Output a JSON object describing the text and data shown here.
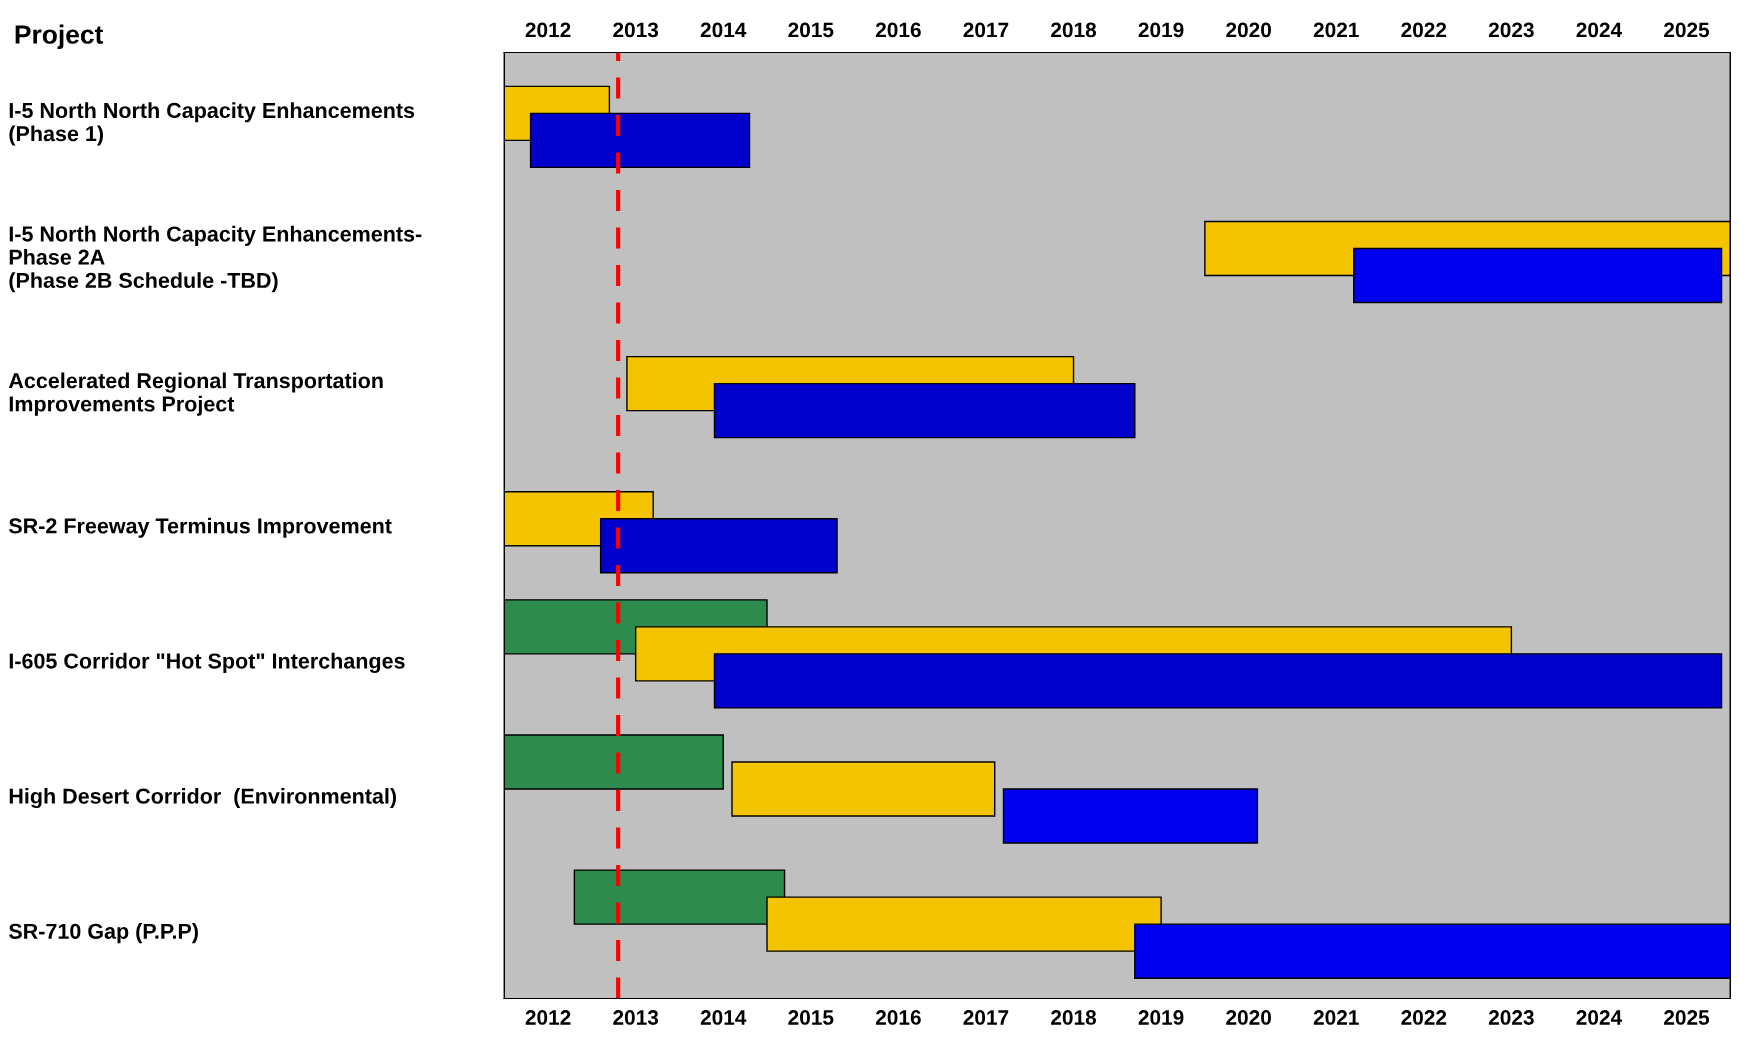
{
  "chart_data": {
    "type": "bar",
    "orientation": "horizontal",
    "ylabel": "Project",
    "categories": [
      "I-5 North North Capacity Enhancements\n(Phase 1)",
      "I-5 North North Capacity Enhancements-\nPhase 2A\n(Phase 2B Schedule -TBD)",
      "Accelerated Regional Transportation\nImprovements Project",
      "SR-2 Freeway Terminus Improvement",
      "I-605 Corridor \"Hot Spot\" Interchanges",
      "High Desert Corridor  (Environmental)",
      "SR-710 Gap (P.P.P)"
    ],
    "series": [
      {
        "color": "#2e8b4e",
        "values": [
          null,
          null,
          null,
          null,
          3.0,
          2.5,
          2.4
        ],
        "base": [
          null,
          null,
          null,
          null,
          2012,
          2012,
          2012.8
        ]
      },
      {
        "color": "#f5c400",
        "values": [
          1.2,
          null,
          5.1,
          1.7,
          10.0,
          null,
          4.5
        ],
        "base": [
          2012,
          null,
          2013.4,
          2012,
          2013.5,
          null,
          2015
        ]
      },
      {
        "color": "#f5c400",
        "values": [
          null,
          6.0,
          null,
          null,
          null,
          3.0,
          null
        ],
        "base": [
          null,
          2020,
          null,
          null,
          null,
          2014.6,
          null
        ]
      },
      {
        "color": "#0000cc",
        "values": [
          2.5,
          null,
          4.8,
          2.7,
          11.5,
          null,
          null
        ],
        "base": [
          2012.3,
          null,
          2014.4,
          2013.1,
          2014.4,
          null,
          null
        ]
      },
      {
        "color": "#0000ee",
        "values": [
          null,
          4.2,
          null,
          null,
          null,
          2.9,
          6.8
        ],
        "base": [
          null,
          2021.7,
          null,
          null,
          null,
          2017.7,
          2019.2
        ]
      }
    ],
    "xlim": [
      2012,
      2026
    ],
    "xticks": [
      {
        "value": 2012.5,
        "label": "2012"
      },
      {
        "value": 2013.5,
        "label": "2013"
      },
      {
        "value": 2014.5,
        "label": "2014"
      },
      {
        "value": 2015.5,
        "label": "2015"
      },
      {
        "value": 2016.5,
        "label": "2016"
      },
      {
        "value": 2017.5,
        "label": "2017"
      },
      {
        "value": 2018.5,
        "label": "2018"
      },
      {
        "value": 2019.5,
        "label": "2019"
      },
      {
        "value": 2020.5,
        "label": "2020"
      },
      {
        "value": 2021.5,
        "label": "2021"
      },
      {
        "value": 2022.5,
        "label": "2022"
      },
      {
        "value": 2023.5,
        "label": "2023"
      },
      {
        "value": 2024.5,
        "label": "2024"
      },
      {
        "value": 2025.5,
        "label": "2025"
      }
    ],
    "x2lim": [
      2012,
      2026
    ],
    "x2ticks": [
      {
        "value": 2012.5,
        "label": "2012"
      },
      {
        "value": 2013.5,
        "label": "2013"
      },
      {
        "value": 2014.5,
        "label": "2014"
      },
      {
        "value": 2015.5,
        "label": "2015"
      },
      {
        "value": 2016.5,
        "label": "2016"
      },
      {
        "value": 2017.5,
        "label": "2017"
      },
      {
        "value": 2018.5,
        "label": "2018"
      },
      {
        "value": 2019.5,
        "label": "2019"
      },
      {
        "value": 2020.5,
        "label": "2020"
      },
      {
        "value": 2021.5,
        "label": "2021"
      },
      {
        "value": 2022.5,
        "label": "2022"
      },
      {
        "value": 2023.5,
        "label": "2023"
      },
      {
        "value": 2024.5,
        "label": "2024"
      },
      {
        "value": 2025.5,
        "label": "2025"
      }
    ],
    "ref_lines": [
      {
        "axis": "x",
        "value": 2013.3,
        "color": "#ff0000",
        "line_style": "dashed"
      }
    ],
    "grid": false,
    "legend": false
  }
}
